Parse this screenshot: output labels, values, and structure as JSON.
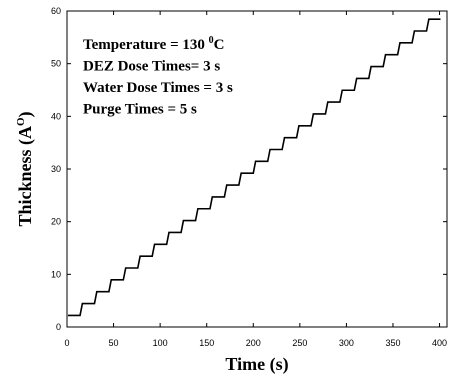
{
  "chart_data": {
    "type": "line",
    "xlabel": "Time (s)",
    "ylabel": [
      "Thickness (A",
      "O",
      ")"
    ],
    "annotations": [
      [
        "Temperature = 130 ",
        "0",
        "C"
      ],
      [
        "DEZ Dose Times= 3 s"
      ],
      [
        "Water Dose Times = 3 s"
      ],
      [
        "Purge Times = 5 s"
      ]
    ],
    "x": [
      1,
      14,
      16.5,
      29.5,
      32,
      45,
      47.5,
      60.5,
      63,
      76,
      78.5,
      91.5,
      94,
      107,
      109.5,
      122.5,
      125,
      138,
      140.5,
      153.5,
      156,
      169,
      171.5,
      184.5,
      187,
      200,
      202.5,
      215.5,
      218,
      231,
      233.5,
      246.5,
      249,
      262,
      264.5,
      277.5,
      280,
      293,
      295.5,
      308.5,
      311,
      324,
      326.5,
      339.5,
      342,
      355,
      357.5,
      370.5,
      373,
      386,
      388.5,
      401
    ],
    "series": [
      {
        "color": "#000000",
        "values": [
          2.2,
          2.2,
          4.45,
          4.45,
          6.7,
          6.7,
          8.95,
          8.95,
          11.2,
          11.2,
          13.45,
          13.45,
          15.7,
          15.7,
          17.95,
          17.95,
          20.2,
          20.2,
          22.45,
          22.45,
          24.7,
          24.7,
          26.95,
          26.95,
          29.2,
          29.2,
          31.45,
          31.45,
          33.7,
          33.7,
          35.95,
          35.95,
          38.2,
          38.2,
          40.45,
          40.45,
          42.7,
          42.7,
          44.95,
          44.95,
          47.2,
          47.2,
          49.45,
          49.45,
          51.7,
          51.7,
          53.95,
          53.95,
          56.2,
          56.2,
          58.45,
          58.45
        ]
      }
    ],
    "xlim": [
      0,
      408
    ],
    "xticks": [
      0,
      50,
      100,
      150,
      200,
      250,
      300,
      350,
      400
    ],
    "ylim": [
      0,
      60
    ],
    "yticks": [
      0,
      10,
      20,
      30,
      40,
      50,
      60
    ]
  }
}
